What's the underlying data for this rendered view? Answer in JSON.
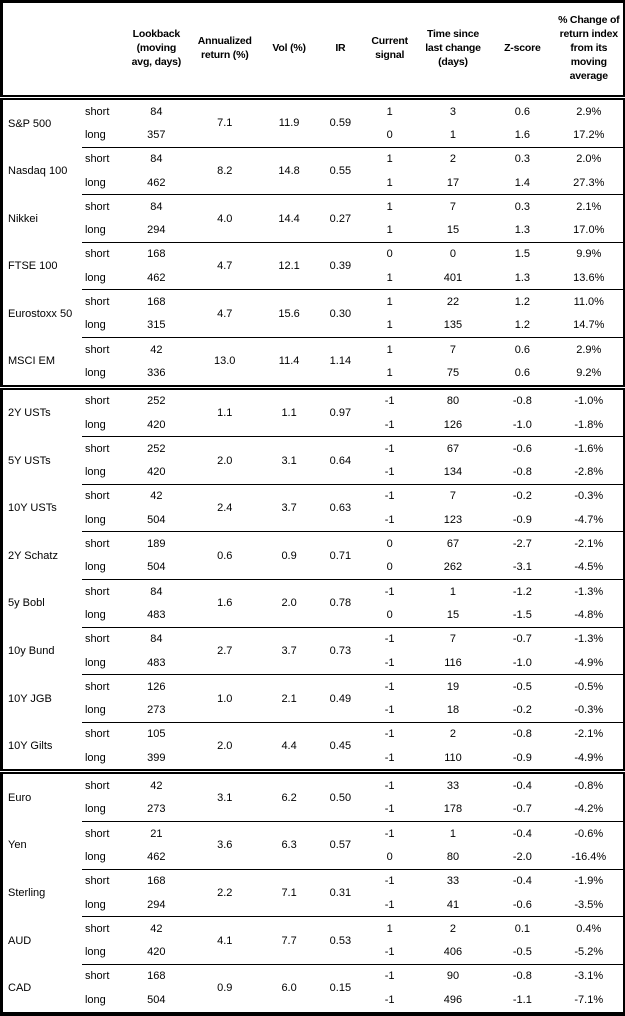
{
  "table": {
    "columns": [
      {
        "key": "name",
        "label": ""
      },
      {
        "key": "leg",
        "label": ""
      },
      {
        "key": "lookback",
        "label": "Lookback\n(moving\navg, days)"
      },
      {
        "key": "ann",
        "label": "Annualized\nreturn (%)"
      },
      {
        "key": "vol",
        "label": "Vol (%)"
      },
      {
        "key": "ir",
        "label": "IR"
      },
      {
        "key": "signal",
        "label": "Current\nsignal"
      },
      {
        "key": "time",
        "label": "Time since\nlast change\n(days)"
      },
      {
        "key": "z",
        "label": "Z-score"
      },
      {
        "key": "chg",
        "label": "% Change of\nreturn index\nfrom its\nmoving\naverage"
      }
    ],
    "leg_labels": {
      "short": "short",
      "long": "long"
    },
    "instruments": [
      {
        "name": "S&P 500",
        "group": "equities",
        "ann": "7.1",
        "vol": "11.9",
        "ir": "0.59",
        "short": {
          "lookback": "84",
          "signal": "1",
          "time": "3",
          "z": "0.6",
          "chg": "2.9%"
        },
        "long": {
          "lookback": "357",
          "signal": "0",
          "time": "1",
          "z": "1.6",
          "chg": "17.2%"
        }
      },
      {
        "name": "Nasdaq 100",
        "group": "equities",
        "ann": "8.2",
        "vol": "14.8",
        "ir": "0.55",
        "short": {
          "lookback": "84",
          "signal": "1",
          "time": "2",
          "z": "0.3",
          "chg": "2.0%"
        },
        "long": {
          "lookback": "462",
          "signal": "1",
          "time": "17",
          "z": "1.4",
          "chg": "27.3%"
        }
      },
      {
        "name": "Nikkei",
        "group": "equities",
        "ann": "4.0",
        "vol": "14.4",
        "ir": "0.27",
        "short": {
          "lookback": "84",
          "signal": "1",
          "time": "7",
          "z": "0.3",
          "chg": "2.1%"
        },
        "long": {
          "lookback": "294",
          "signal": "1",
          "time": "15",
          "z": "1.3",
          "chg": "17.0%"
        }
      },
      {
        "name": "FTSE 100",
        "group": "equities",
        "ann": "4.7",
        "vol": "12.1",
        "ir": "0.39",
        "short": {
          "lookback": "168",
          "signal": "0",
          "time": "0",
          "z": "1.5",
          "chg": "9.9%"
        },
        "long": {
          "lookback": "462",
          "signal": "1",
          "time": "401",
          "z": "1.3",
          "chg": "13.6%"
        }
      },
      {
        "name": "Eurostoxx 50",
        "group": "equities",
        "ann": "4.7",
        "vol": "15.6",
        "ir": "0.30",
        "short": {
          "lookback": "168",
          "signal": "1",
          "time": "22",
          "z": "1.2",
          "chg": "11.0%"
        },
        "long": {
          "lookback": "315",
          "signal": "1",
          "time": "135",
          "z": "1.2",
          "chg": "14.7%"
        }
      },
      {
        "name": "MSCI EM",
        "group": "equities",
        "ann": "13.0",
        "vol": "11.4",
        "ir": "1.14",
        "short": {
          "lookback": "42",
          "signal": "1",
          "time": "7",
          "z": "0.6",
          "chg": "2.9%"
        },
        "long": {
          "lookback": "336",
          "signal": "1",
          "time": "75",
          "z": "0.6",
          "chg": "9.2%"
        }
      },
      {
        "name": "2Y USTs",
        "group": "rates",
        "ann": "1.1",
        "vol": "1.1",
        "ir": "0.97",
        "short": {
          "lookback": "252",
          "signal": "-1",
          "time": "80",
          "z": "-0.8",
          "chg": "-1.0%"
        },
        "long": {
          "lookback": "420",
          "signal": "-1",
          "time": "126",
          "z": "-1.0",
          "chg": "-1.8%"
        }
      },
      {
        "name": "5Y USTs",
        "group": "rates",
        "ann": "2.0",
        "vol": "3.1",
        "ir": "0.64",
        "short": {
          "lookback": "252",
          "signal": "-1",
          "time": "67",
          "z": "-0.6",
          "chg": "-1.6%"
        },
        "long": {
          "lookback": "420",
          "signal": "-1",
          "time": "134",
          "z": "-0.8",
          "chg": "-2.8%"
        }
      },
      {
        "name": "10Y USTs",
        "group": "rates",
        "ann": "2.4",
        "vol": "3.7",
        "ir": "0.63",
        "short": {
          "lookback": "42",
          "signal": "-1",
          "time": "7",
          "z": "-0.2",
          "chg": "-0.3%"
        },
        "long": {
          "lookback": "504",
          "signal": "-1",
          "time": "123",
          "z": "-0.9",
          "chg": "-4.7%"
        }
      },
      {
        "name": "2Y Schatz",
        "group": "rates",
        "ann": "0.6",
        "vol": "0.9",
        "ir": "0.71",
        "short": {
          "lookback": "189",
          "signal": "0",
          "time": "67",
          "z": "-2.7",
          "chg": "-2.1%"
        },
        "long": {
          "lookback": "504",
          "signal": "0",
          "time": "262",
          "z": "-3.1",
          "chg": "-4.5%"
        }
      },
      {
        "name": "5y Bobl",
        "group": "rates",
        "ann": "1.6",
        "vol": "2.0",
        "ir": "0.78",
        "short": {
          "lookback": "84",
          "signal": "-1",
          "time": "1",
          "z": "-1.2",
          "chg": "-1.3%"
        },
        "long": {
          "lookback": "483",
          "signal": "0",
          "time": "15",
          "z": "-1.5",
          "chg": "-4.8%"
        }
      },
      {
        "name": "10y Bund",
        "group": "rates",
        "ann": "2.7",
        "vol": "3.7",
        "ir": "0.73",
        "short": {
          "lookback": "84",
          "signal": "-1",
          "time": "7",
          "z": "-0.7",
          "chg": "-1.3%"
        },
        "long": {
          "lookback": "483",
          "signal": "-1",
          "time": "116",
          "z": "-1.0",
          "chg": "-4.9%"
        }
      },
      {
        "name": "10Y JGB",
        "group": "rates",
        "ann": "1.0",
        "vol": "2.1",
        "ir": "0.49",
        "short": {
          "lookback": "126",
          "signal": "-1",
          "time": "19",
          "z": "-0.5",
          "chg": "-0.5%"
        },
        "long": {
          "lookback": "273",
          "signal": "-1",
          "time": "18",
          "z": "-0.2",
          "chg": "-0.3%"
        }
      },
      {
        "name": "10Y Gilts",
        "group": "rates",
        "ann": "2.0",
        "vol": "4.4",
        "ir": "0.45",
        "short": {
          "lookback": "105",
          "signal": "-1",
          "time": "2",
          "z": "-0.8",
          "chg": "-2.1%"
        },
        "long": {
          "lookback": "399",
          "signal": "-1",
          "time": "110",
          "z": "-0.9",
          "chg": "-4.9%"
        }
      },
      {
        "name": "Euro",
        "group": "fx",
        "ann": "3.1",
        "vol": "6.2",
        "ir": "0.50",
        "short": {
          "lookback": "42",
          "signal": "-1",
          "time": "33",
          "z": "-0.4",
          "chg": "-0.8%"
        },
        "long": {
          "lookback": "273",
          "signal": "-1",
          "time": "178",
          "z": "-0.7",
          "chg": "-4.2%"
        }
      },
      {
        "name": "Yen",
        "group": "fx",
        "ann": "3.6",
        "vol": "6.3",
        "ir": "0.57",
        "short": {
          "lookback": "21",
          "signal": "-1",
          "time": "1",
          "z": "-0.4",
          "chg": "-0.6%"
        },
        "long": {
          "lookback": "462",
          "signal": "0",
          "time": "80",
          "z": "-2.0",
          "chg": "-16.4%"
        }
      },
      {
        "name": "Sterling",
        "group": "fx",
        "ann": "2.2",
        "vol": "7.1",
        "ir": "0.31",
        "short": {
          "lookback": "168",
          "signal": "-1",
          "time": "33",
          "z": "-0.4",
          "chg": "-1.9%"
        },
        "long": {
          "lookback": "294",
          "signal": "-1",
          "time": "41",
          "z": "-0.6",
          "chg": "-3.5%"
        }
      },
      {
        "name": "AUD",
        "group": "fx",
        "ann": "4.1",
        "vol": "7.7",
        "ir": "0.53",
        "short": {
          "lookback": "42",
          "signal": "1",
          "time": "2",
          "z": "0.1",
          "chg": "0.4%"
        },
        "long": {
          "lookback": "420",
          "signal": "-1",
          "time": "406",
          "z": "-0.5",
          "chg": "-5.2%"
        }
      },
      {
        "name": "CAD",
        "group": "fx",
        "ann": "0.9",
        "vol": "6.0",
        "ir": "0.15",
        "short": {
          "lookback": "168",
          "signal": "-1",
          "time": "90",
          "z": "-0.8",
          "chg": "-3.1%"
        },
        "long": {
          "lookback": "504",
          "signal": "-1",
          "time": "496",
          "z": "-1.1",
          "chg": "-7.1%"
        }
      }
    ]
  }
}
